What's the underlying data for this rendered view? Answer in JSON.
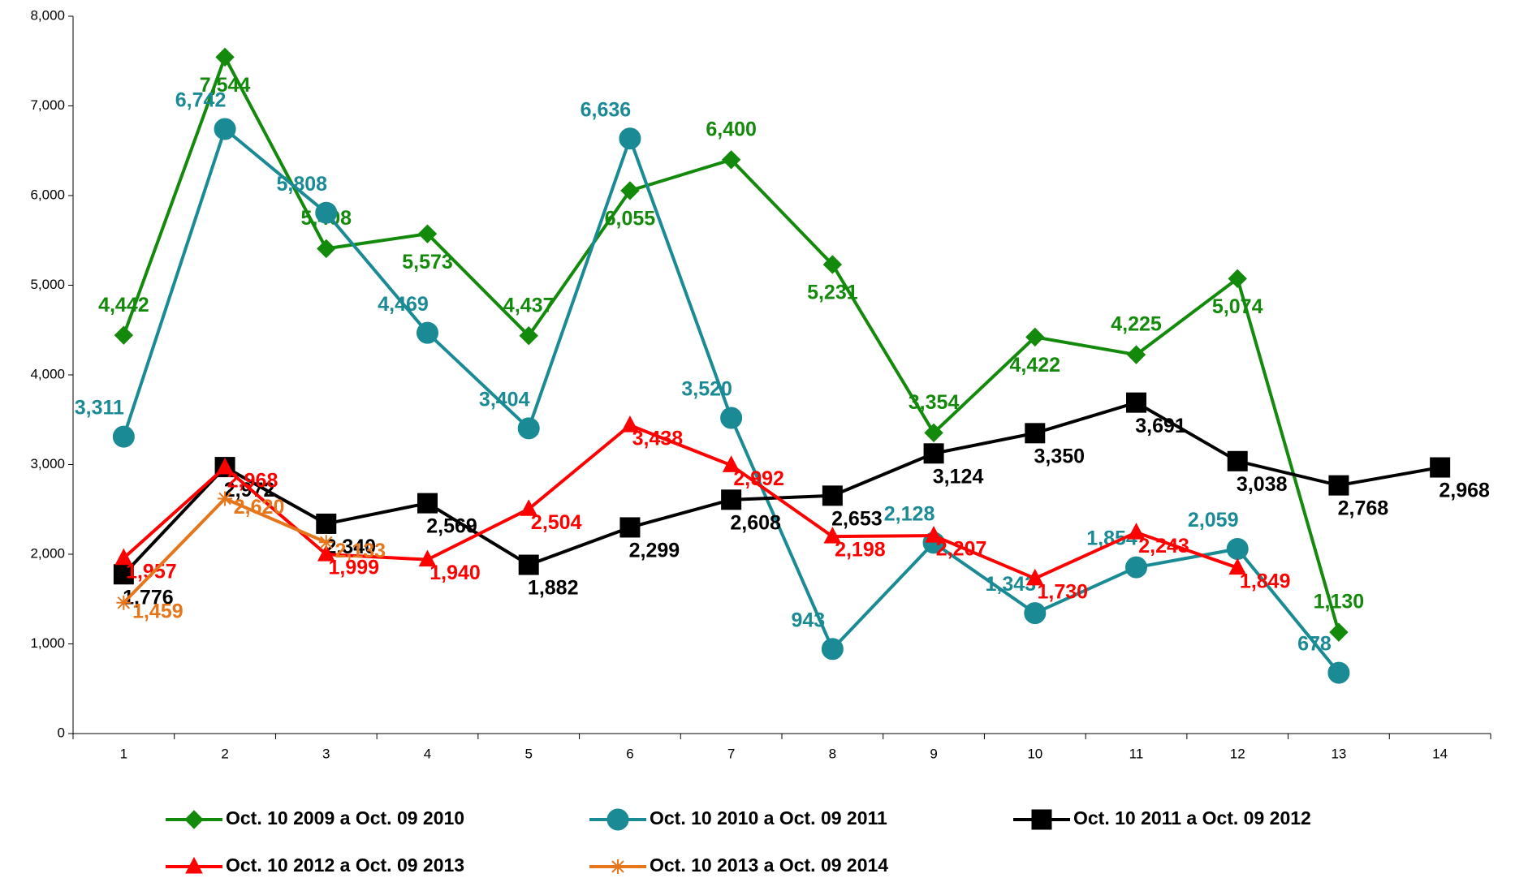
{
  "chart_data": {
    "type": "line",
    "categories": [
      "1",
      "2",
      "3",
      "4",
      "5",
      "6",
      "7",
      "8",
      "9",
      "10",
      "11",
      "12",
      "13",
      "14"
    ],
    "ylim": [
      0,
      8000
    ],
    "yticks": [
      0,
      {
        "value": 1000,
        "label": "1,000"
      },
      {
        "value": 2000,
        "label": "2,000"
      },
      {
        "value": 3000,
        "label": "3,000"
      },
      {
        "value": 4000,
        "label": "4,000"
      },
      {
        "value": 5000,
        "label": "5,000"
      },
      {
        "value": 6000,
        "label": "6,000"
      },
      {
        "value": 7000,
        "label": "7,000"
      },
      {
        "value": 8000,
        "label": "8,000"
      }
    ],
    "legend": "bottom",
    "series": [
      {
        "name": "Oct. 10 2009 a Oct. 09 2010",
        "color": "#138a0b",
        "marker": "diamond",
        "values": [
          4442,
          7544,
          5408,
          5573,
          4437,
          6055,
          6400,
          5231,
          3354,
          4422,
          4225,
          5074,
          1130,
          null
        ],
        "value_labels": [
          "4,442",
          "7,544",
          "5,408",
          "5,573",
          "4,437",
          "6,055",
          "6,400",
          "5,231",
          "3,354",
          "4,422",
          "4,225",
          "5,074",
          "1,130",
          null
        ]
      },
      {
        "name": "Oct. 10 2010 a Oct. 09 2011",
        "color": "#1a8a94",
        "marker": "circle",
        "values": [
          3311,
          6742,
          5808,
          4469,
          3404,
          6636,
          3520,
          943,
          2128,
          1343,
          1854,
          2059,
          678,
          null
        ],
        "value_labels": [
          "3,311",
          "6,742",
          "5,808",
          "4,469",
          "3,404",
          "6,636",
          "3,520",
          "943",
          "2,128",
          "1,343",
          "1,854",
          "2,059",
          "678",
          null
        ]
      },
      {
        "name": "Oct. 10 2011 a Oct. 09 2012",
        "color": "#000000",
        "marker": "square",
        "values": [
          1776,
          2972,
          2340,
          2569,
          1882,
          2299,
          2608,
          2653,
          3124,
          3350,
          3691,
          3038,
          2768,
          2968
        ],
        "value_labels": [
          "1,776",
          "2,972",
          "2,340",
          "2,569",
          "1,882",
          "2,299",
          "2,608",
          "2,653",
          "3,124",
          "3,350",
          "3,691",
          "3,038",
          "2,768",
          "2,968"
        ]
      },
      {
        "name": "Oct. 10 2012 a Oct. 09 2013",
        "color": "#ff0000",
        "marker": "triangle",
        "values": [
          1957,
          2968,
          1999,
          1940,
          2504,
          3438,
          2992,
          2198,
          2207,
          1730,
          2243,
          1849,
          null,
          null
        ],
        "value_labels": [
          "1,957",
          "2,968",
          "1,999",
          "1,940",
          "2,504",
          "3,438",
          "2,992",
          "2,198",
          "2,207",
          "1,730",
          "2,243",
          "1,849",
          null,
          null
        ]
      },
      {
        "name": "Oct. 10 2013 a Oct. 09 2014",
        "color": "#e6761b",
        "marker": "star",
        "values": [
          1459,
          2620,
          2133,
          null,
          null,
          null,
          null,
          null,
          null,
          null,
          null,
          null,
          null,
          null
        ],
        "value_labels": [
          "1,459",
          "2,620",
          "2,133",
          null,
          null,
          null,
          null,
          null,
          null,
          null,
          null,
          null,
          null,
          null
        ]
      }
    ]
  }
}
